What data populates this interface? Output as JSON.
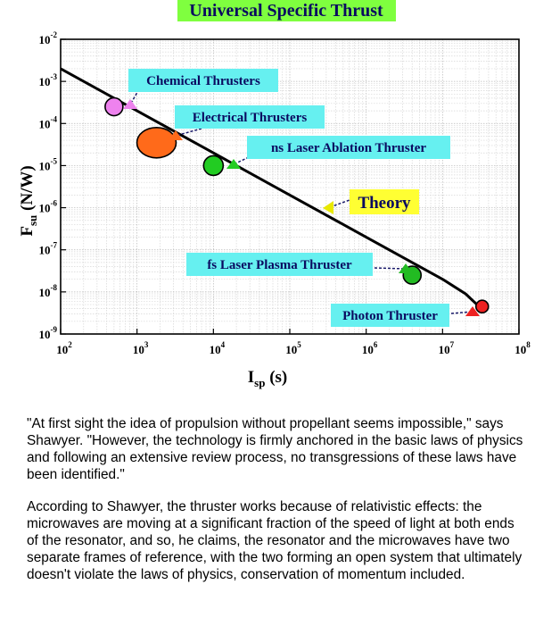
{
  "chart_data": {
    "type": "scatter",
    "title": "Universal Specific Thrust",
    "xlabel_main": "I",
    "xlabel_sub": "sp",
    "xlabel_unit": " (s)",
    "ylabel_main": "F",
    "ylabel_sub": "su",
    "ylabel_unit": " (N/W)",
    "x_scale": "log",
    "y_scale": "log",
    "xlim": [
      100,
      100000000
    ],
    "ylim": [
      1e-09,
      0.01
    ],
    "grid": true,
    "x_ticks": [
      {
        "base": "10",
        "exp": "2",
        "value": 100
      },
      {
        "base": "10",
        "exp": "3",
        "value": 1000
      },
      {
        "base": "10",
        "exp": "4",
        "value": 10000
      },
      {
        "base": "10",
        "exp": "5",
        "value": 100000
      },
      {
        "base": "10",
        "exp": "6",
        "value": 1000000
      },
      {
        "base": "10",
        "exp": "7",
        "value": 10000000
      },
      {
        "base": "10",
        "exp": "8",
        "value": 100000000
      }
    ],
    "y_ticks": [
      {
        "base": "10",
        "exp": "-9",
        "value": 1e-09
      },
      {
        "base": "10",
        "exp": "-8",
        "value": 1e-08
      },
      {
        "base": "10",
        "exp": "-7",
        "value": 1e-07
      },
      {
        "base": "10",
        "exp": "-6",
        "value": 1e-06
      },
      {
        "base": "10",
        "exp": "-5",
        "value": 1e-05
      },
      {
        "base": "10",
        "exp": "-4",
        "value": 0.0001
      },
      {
        "base": "10",
        "exp": "-3",
        "value": 0.001
      },
      {
        "base": "10",
        "exp": "-2",
        "value": 0.01
      }
    ],
    "theory_curve": {
      "label": "Theory",
      "points": [
        [
          100,
          0.002
        ],
        [
          1000,
          0.0002
        ],
        [
          10000,
          2e-05
        ],
        [
          100000,
          2e-06
        ],
        [
          1000000,
          2e-07
        ],
        [
          10000000,
          2e-08
        ],
        [
          20000000,
          9e-09
        ],
        [
          30000000,
          4.5e-09
        ]
      ]
    },
    "series": [
      {
        "name": "Chemical Thrusters",
        "x": 500,
        "y": 0.00025,
        "color": "#ee82ee"
      },
      {
        "name": "Electrical Thrusters",
        "x": 1800,
        "y": 3.5e-05,
        "color": "#ff6a1a"
      },
      {
        "name": "ns Laser Ablation Thruster",
        "x": 10000,
        "y": 1e-05,
        "color": "#22cc22"
      },
      {
        "name": "fs Laser Plasma Thruster",
        "x": 4000000,
        "y": 2.5e-08,
        "color": "#22bb22"
      },
      {
        "name": "Photon Thruster",
        "x": 33000000,
        "y": 4.5e-09,
        "color": "#ee2222"
      }
    ]
  },
  "caption": {
    "paragraph_1": "\"At first sight the idea of propulsion without propellant seems impossible,\" says Shawyer. \"However, the technology is firmly anchored in the basic laws of physics and following an extensive review process, no transgressions of these laws have been identified.\"",
    "paragraph_2": "According to Shawyer, the thruster works because of relativistic effects: the microwaves are moving at a significant fraction of the speed of light at both ends of the resonator, and so, he claims, the resonator and the microwaves have two separate frames of reference, with the two forming an open system that ultimately doesn't violate the laws of physics, conservation of momentum included."
  }
}
